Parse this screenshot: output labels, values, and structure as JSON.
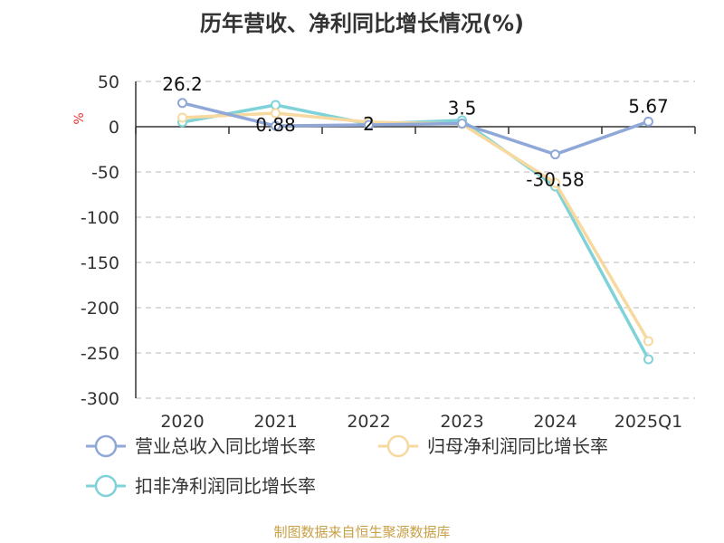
{
  "title": "历年营收、净利同比增长情况(%)",
  "source": "制图数据来自恒生聚源数据库",
  "chart_data": {
    "type": "line",
    "title": "历年营收、净利同比增长情况(%)",
    "ylabel": "%",
    "xlabel": "",
    "categories": [
      "2020",
      "2021",
      "2022",
      "2023",
      "2024",
      "2025Q1"
    ],
    "ylim": [
      -300,
      50
    ],
    "yticks": [
      50,
      0,
      -50,
      -100,
      -150,
      -200,
      -250,
      -300
    ],
    "grid": true,
    "legend_position": "bottom",
    "series": [
      {
        "name": "营业总收入同比增长率",
        "color": "#8fa8d8",
        "values": [
          26.2,
          0.88,
          2,
          3.5,
          -30.58,
          5.67
        ],
        "labels": [
          "26.2",
          "0.88",
          "2",
          "3.5",
          "-30.58",
          "5.67"
        ]
      },
      {
        "name": "归母净利润同比增长率",
        "color": "#f7d9a0",
        "values": [
          10,
          15,
          5,
          3,
          -62,
          -237
        ],
        "labels": [
          "",
          "",
          "",
          "",
          "",
          ""
        ]
      },
      {
        "name": "扣非净利润同比增长率",
        "color": "#7fd3d8",
        "values": [
          5,
          24,
          3,
          7,
          -66,
          -257
        ],
        "labels": [
          "",
          "",
          "",
          "",
          "",
          ""
        ]
      }
    ]
  }
}
